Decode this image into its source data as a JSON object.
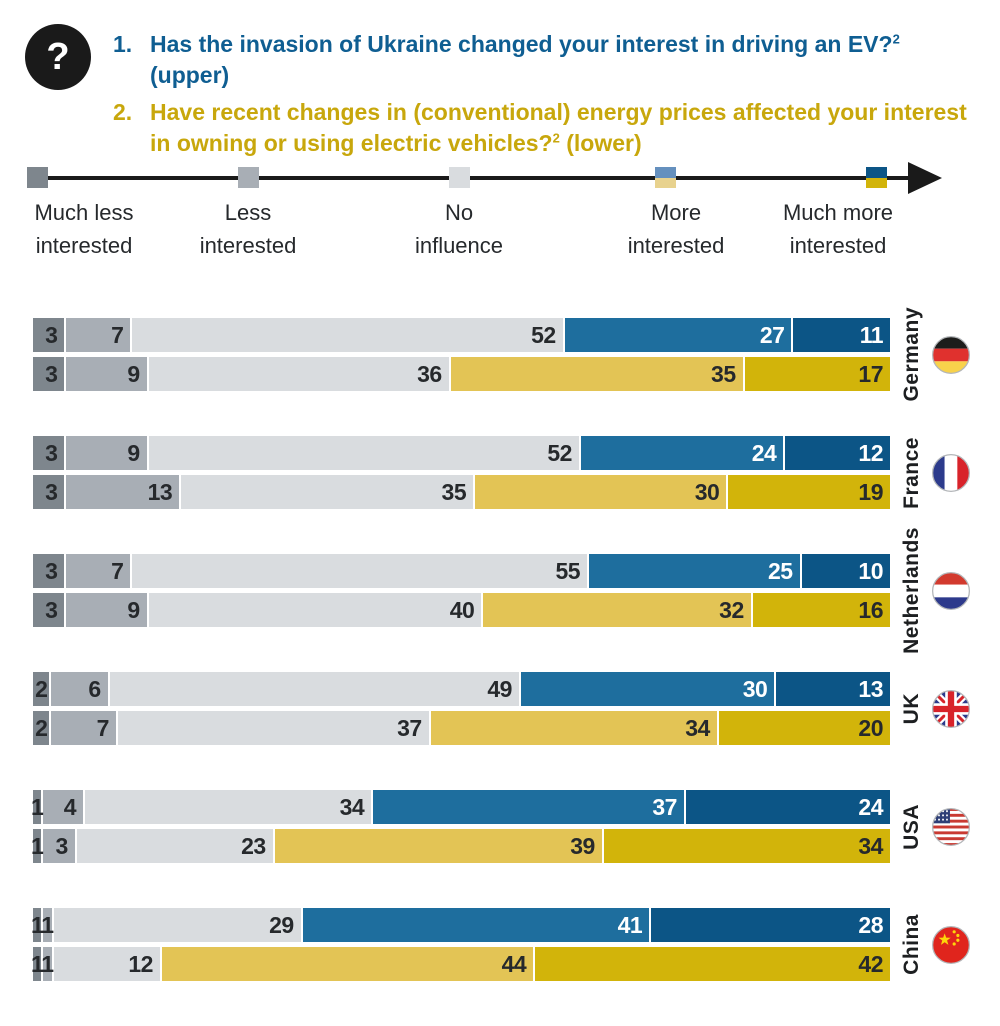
{
  "header": {
    "icon": "question-mark-icon",
    "icon_glyph": "?",
    "q1_number": "1.",
    "q1_text": "Has the invasion of Ukraine changed your interest in driving an EV?",
    "q1_sup": "2",
    "q1_suffix": " (upper)",
    "q2_number": "2.",
    "q2_text": "Have recent changes in (conventional) energy prices affected your interest in owning or using electric vehicles?",
    "q2_sup": "2",
    "q2_suffix": " (lower)"
  },
  "scale": {
    "items": [
      {
        "label_line1": "Much less",
        "label_line2": "interested",
        "marker": "dark-gray"
      },
      {
        "label_line1": "Less",
        "label_line2": "interested",
        "marker": "mid-gray"
      },
      {
        "label_line1": "No",
        "label_line2": "influence",
        "marker": "light-gray"
      },
      {
        "label_line1": "More",
        "label_line2": "interested",
        "marker": "split-light"
      },
      {
        "label_line1": "Much more",
        "label_line2": "interested",
        "marker": "split-dark"
      }
    ]
  },
  "chart_data": {
    "type": "bar",
    "subtype": "horizontal-stacked-100-percent",
    "categories": [
      "Much less interested",
      "Less interested",
      "No influence",
      "More interested",
      "Much more interested"
    ],
    "upper_series_question": "Has the invasion of Ukraine changed your interest in driving an EV? (upper)",
    "lower_series_question": "Have recent changes in (conventional) energy prices affected your interest in owning or using electric vehicles? (lower)",
    "countries": [
      {
        "name": "Germany",
        "upper": [
          3,
          7,
          52,
          27,
          11
        ],
        "lower": [
          3,
          9,
          36,
          35,
          17
        ]
      },
      {
        "name": "France",
        "upper": [
          3,
          9,
          52,
          24,
          12
        ],
        "lower": [
          3,
          13,
          35,
          30,
          19
        ]
      },
      {
        "name": "Netherlands",
        "upper": [
          3,
          7,
          55,
          25,
          10
        ],
        "lower": [
          3,
          9,
          40,
          32,
          16
        ]
      },
      {
        "name": "UK",
        "upper": [
          2,
          6,
          49,
          30,
          13
        ],
        "lower": [
          2,
          7,
          37,
          34,
          20
        ]
      },
      {
        "name": "USA",
        "upper": [
          1,
          4,
          34,
          37,
          24
        ],
        "lower": [
          1,
          3,
          23,
          39,
          34
        ]
      },
      {
        "name": "China",
        "upper": [
          1,
          1,
          29,
          41,
          28
        ],
        "lower": [
          1,
          1,
          12,
          44,
          42
        ]
      }
    ]
  },
  "colors": {
    "much_less": "#7E868D",
    "less": "#A8AEB5",
    "no_influence": "#D9DCDF",
    "more_blue": "#1E6E9E",
    "much_more_blue": "#0C5586",
    "more_gold": "#E3C455",
    "much_more_gold": "#D2B40A",
    "legend_more_blue": "#6590BE",
    "legend_more_gold": "#E8D28E",
    "title_blue": "#0F5E92",
    "title_gold": "#C8A70C",
    "value_dark": "#26292C",
    "value_white": "#FFFFFF",
    "axis_black": "#1A1A1A"
  }
}
